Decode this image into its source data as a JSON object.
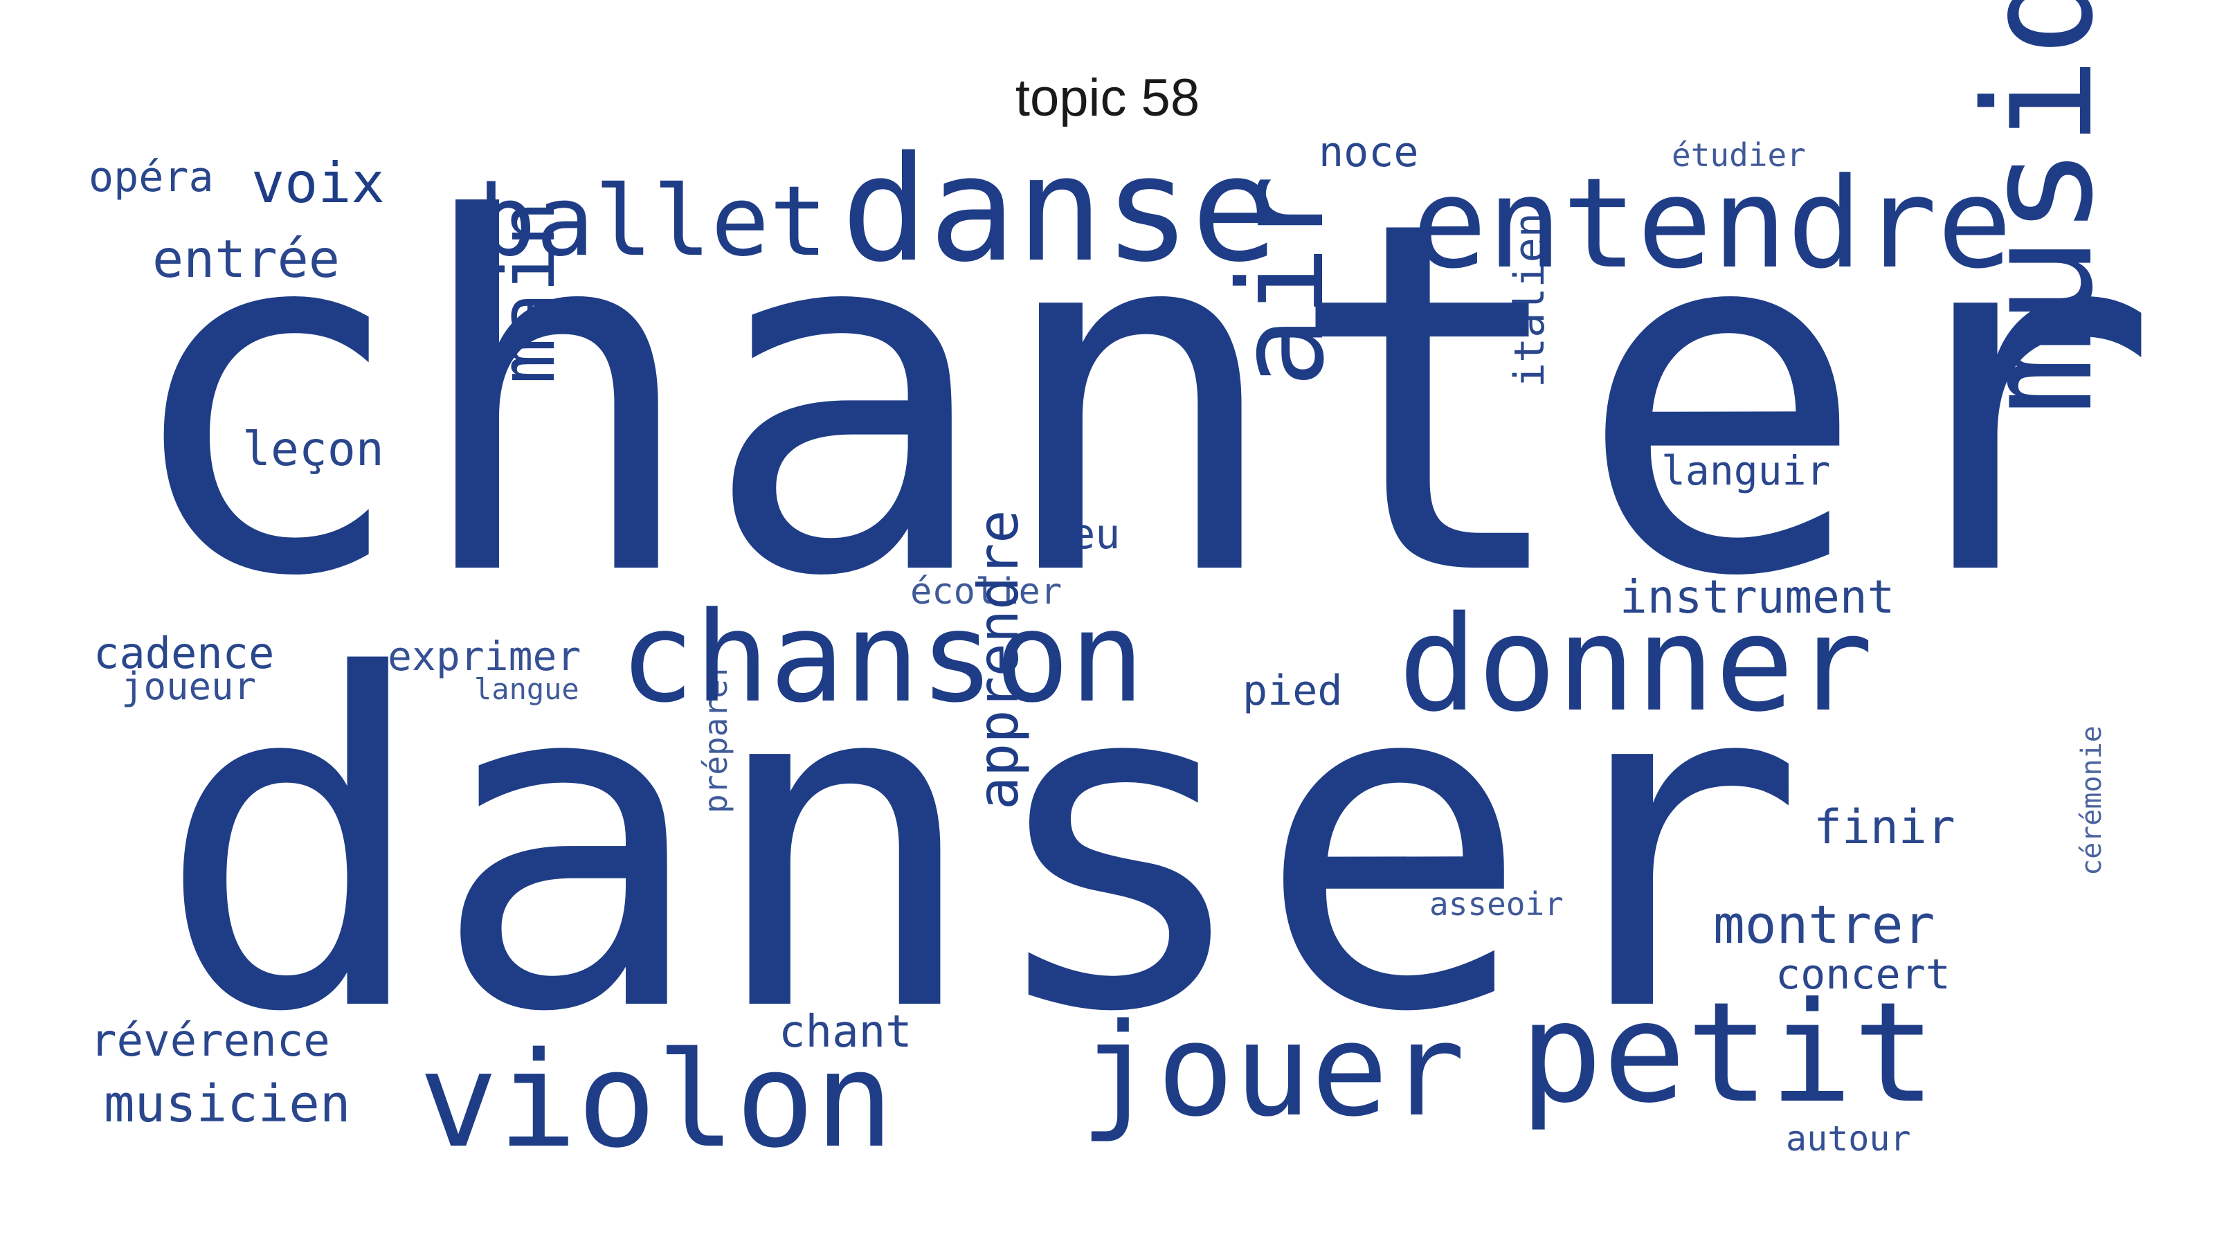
{
  "title": "topic 58",
  "color": "#1f3d87",
  "words": [
    "chanter",
    "danser",
    "danse",
    "entendre",
    "ballet",
    "musique",
    "air",
    "main",
    "chanson",
    "donner",
    "jouer",
    "petit",
    "violon",
    "apprendre",
    "voix",
    "opéra",
    "entrée",
    "noce",
    "étudier",
    "leçon",
    "jeu",
    "écolier",
    "italien",
    "languir",
    "instrument",
    "cadence",
    "joueur",
    "exprimer",
    "langue",
    "pied",
    "finir",
    "préparer",
    "asseoir",
    "montrer",
    "concert",
    "cérémonie",
    "révérence",
    "chant",
    "musicien",
    "autour"
  ]
}
